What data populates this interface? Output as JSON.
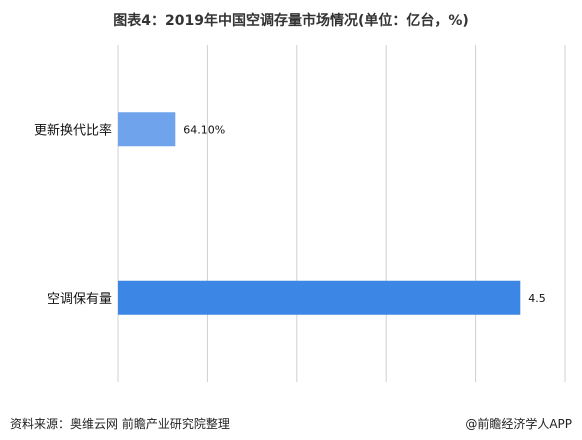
{
  "title": "图表4：2019年中国空调存量市场情况(单位：亿台，%)",
  "source": "资料来源：奥维云网 前瞻产业研究院整理",
  "brand": "@前瞻经济学人APP",
  "colors": {
    "bar_light": "#6fa3ec",
    "bar_dark": "#3c86e6",
    "grid": "#d0d0d0"
  },
  "chart_data": {
    "type": "bar",
    "orientation": "horizontal",
    "categories": [
      "更新换代比率",
      "空调保有量"
    ],
    "values": [
      0.641,
      4.5
    ],
    "value_labels": [
      "64.10%",
      "4.5"
    ],
    "title": "图表4：2019年中国空调存量市场情况(单位：亿台，%)",
    "xlim": [
      0,
      5
    ],
    "grid": true
  }
}
